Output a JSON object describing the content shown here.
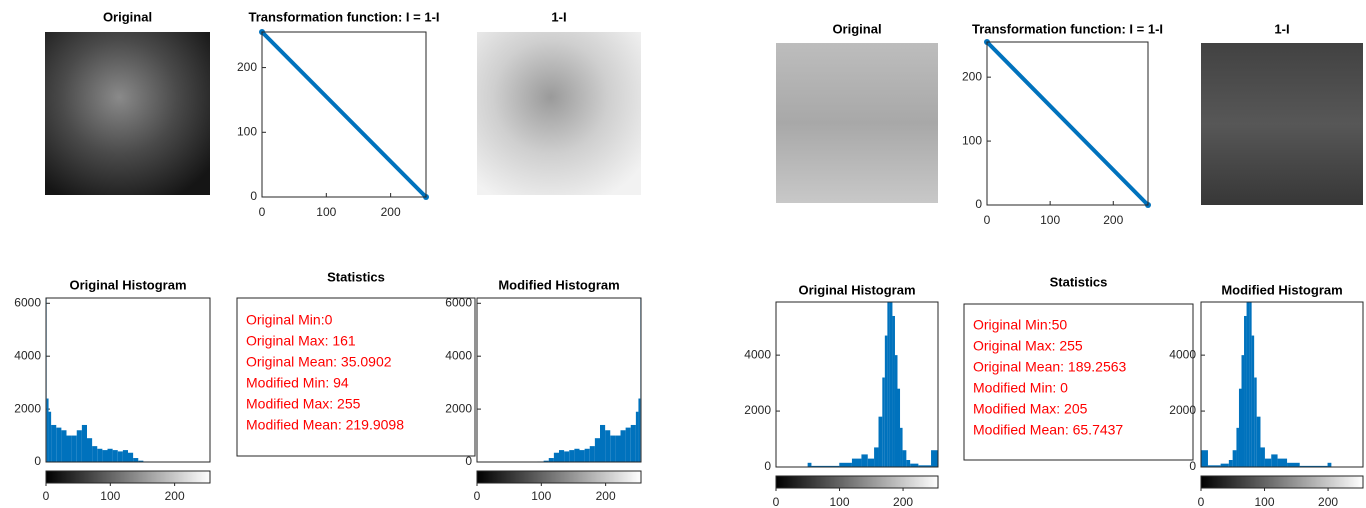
{
  "figures": [
    {
      "original": {
        "title": "Original"
      },
      "transform": {
        "type": "line",
        "title": "Transformation function: I = 1-I",
        "x": [
          0,
          255
        ],
        "values": [
          255,
          0
        ],
        "color": "#0072bd",
        "xlim": [
          0,
          255
        ],
        "ylim": [
          0,
          255
        ],
        "xticks": [
          0,
          100,
          200
        ],
        "yticks": [
          0,
          100,
          200
        ]
      },
      "inverse": {
        "title": "1-I"
      },
      "original_histogram": {
        "type": "histogram",
        "title": "Original Histogram",
        "color": "#0072bd",
        "bins": [
          0,
          1,
          4,
          8,
          16,
          24,
          32,
          40,
          48,
          56,
          64,
          72,
          80,
          88,
          96,
          104,
          112,
          120,
          128,
          136,
          144,
          152,
          162,
          256
        ],
        "values": [
          6200,
          2400,
          1900,
          1400,
          1300,
          1200,
          1000,
          1000,
          1200,
          1400,
          900,
          600,
          500,
          450,
          500,
          450,
          400,
          450,
          350,
          150,
          50,
          20,
          0
        ],
        "xlim": [
          0,
          256
        ],
        "ylim": [
          0,
          6200
        ],
        "yticks": [
          0,
          2000,
          4000,
          6000
        ],
        "colorbar": {
          "xlim": [
            0,
            255
          ],
          "xticks": [
            0,
            100,
            200
          ]
        }
      },
      "statistics": {
        "title": "Statistics",
        "lines": [
          "Original Min:0",
          "Original Max: 161",
          "Original Mean: 35.0902",
          "Modified Min: 94",
          "Modified Max: 255",
          "Modified Mean: 219.9098"
        ]
      },
      "modified_histogram": {
        "type": "histogram",
        "title": "Modified Histogram",
        "color": "#0072bd",
        "bins": [
          0,
          94,
          104,
          112,
          120,
          128,
          136,
          144,
          152,
          160,
          168,
          176,
          184,
          192,
          200,
          208,
          216,
          224,
          232,
          240,
          248,
          252,
          255,
          256
        ],
        "values": [
          0,
          20,
          50,
          150,
          350,
          450,
          400,
          450,
          500,
          450,
          500,
          600,
          900,
          1400,
          1200,
          1000,
          1000,
          1200,
          1300,
          1400,
          1900,
          2400,
          6200
        ],
        "xlim": [
          0,
          256
        ],
        "ylim": [
          0,
          6200
        ],
        "yticks": [
          0,
          2000,
          4000,
          6000
        ],
        "colorbar": {
          "xlim": [
            0,
            255
          ],
          "xticks": [
            0,
            100,
            200
          ]
        }
      }
    },
    {
      "original": {
        "title": "Original"
      },
      "transform": {
        "type": "line",
        "title": "Transformation function: I = 1-I",
        "x": [
          0,
          255
        ],
        "values": [
          255,
          0
        ],
        "color": "#0072bd",
        "xlim": [
          0,
          255
        ],
        "ylim": [
          0,
          255
        ],
        "xticks": [
          0,
          100,
          200
        ],
        "yticks": [
          0,
          100,
          200
        ]
      },
      "inverse": {
        "title": "1-I"
      },
      "original_histogram": {
        "type": "histogram",
        "title": "Original Histogram",
        "color": "#0072bd",
        "bins": [
          50,
          56,
          100,
          120,
          135,
          145,
          155,
          162,
          168,
          172,
          176,
          180,
          184,
          188,
          192,
          196,
          200,
          206,
          212,
          225,
          245,
          256
        ],
        "values": [
          150,
          40,
          150,
          300,
          450,
          300,
          700,
          1800,
          3200,
          4700,
          5900,
          5900,
          5400,
          4000,
          2800,
          1400,
          600,
          250,
          120,
          60,
          600
        ],
        "xlim": [
          0,
          256
        ],
        "ylim": [
          0,
          5900
        ],
        "yticks": [
          0,
          2000,
          4000
        ],
        "colorbar": {
          "xlim": [
            0,
            255
          ],
          "xticks": [
            0,
            100,
            200
          ]
        }
      },
      "statistics": {
        "title": "Statistics",
        "lines": [
          "Original Min:50",
          "Original Max: 255",
          "Original Mean: 189.2563",
          "Modified Min: 0",
          "Modified Max: 205",
          "Modified Mean: 65.7437"
        ]
      },
      "modified_histogram": {
        "type": "histogram",
        "title": "Modified Histogram",
        "color": "#0072bd",
        "bins": [
          0,
          11,
          31,
          44,
          50,
          56,
          60,
          64,
          68,
          72,
          76,
          80,
          84,
          88,
          94,
          101,
          111,
          121,
          136,
          156,
          200,
          206
        ],
        "values": [
          600,
          60,
          120,
          250,
          600,
          1400,
          2800,
          4000,
          5400,
          5900,
          5900,
          4700,
          3200,
          1800,
          700,
          300,
          450,
          300,
          150,
          40,
          150
        ],
        "xlim": [
          0,
          256
        ],
        "ylim": [
          0,
          5900
        ],
        "yticks": [
          0,
          2000,
          4000
        ],
        "colorbar": {
          "xlim": [
            0,
            255
          ],
          "xticks": [
            0,
            100,
            200
          ]
        }
      }
    }
  ]
}
